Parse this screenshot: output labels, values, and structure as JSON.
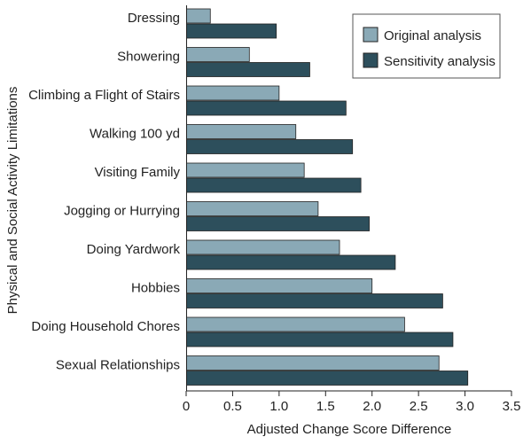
{
  "chart_data": {
    "type": "bar",
    "orientation": "horizontal",
    "xlabel": "Adjusted Change Score Difference",
    "ylabel": "Physical and Social Activity Limitations",
    "xlim": [
      0,
      3.5
    ],
    "xticks": [
      "0",
      "0.5",
      "1.0",
      "1.5",
      "2.0",
      "2.5",
      "3.0",
      "3.5"
    ],
    "categories": [
      "Dressing",
      "Showering",
      "Climbing a Flight of Stairs",
      "Walking 100 yd",
      "Visiting Family",
      "Jogging or Hurrying",
      "Doing Yardwork",
      "Hobbies",
      "Doing Household Chores",
      "Sexual Relationships"
    ],
    "series": [
      {
        "name": "Original analysis",
        "color": "#8aa9b6",
        "values": [
          0.26,
          0.68,
          1.0,
          1.18,
          1.27,
          1.42,
          1.65,
          2.0,
          2.35,
          2.72
        ]
      },
      {
        "name": "Sensitivity analysis",
        "color": "#2d4f5c",
        "values": [
          0.97,
          1.33,
          1.72,
          1.79,
          1.88,
          1.97,
          2.25,
          2.76,
          2.87,
          3.03
        ]
      }
    ],
    "grid": false,
    "legend_position": "top-right"
  }
}
